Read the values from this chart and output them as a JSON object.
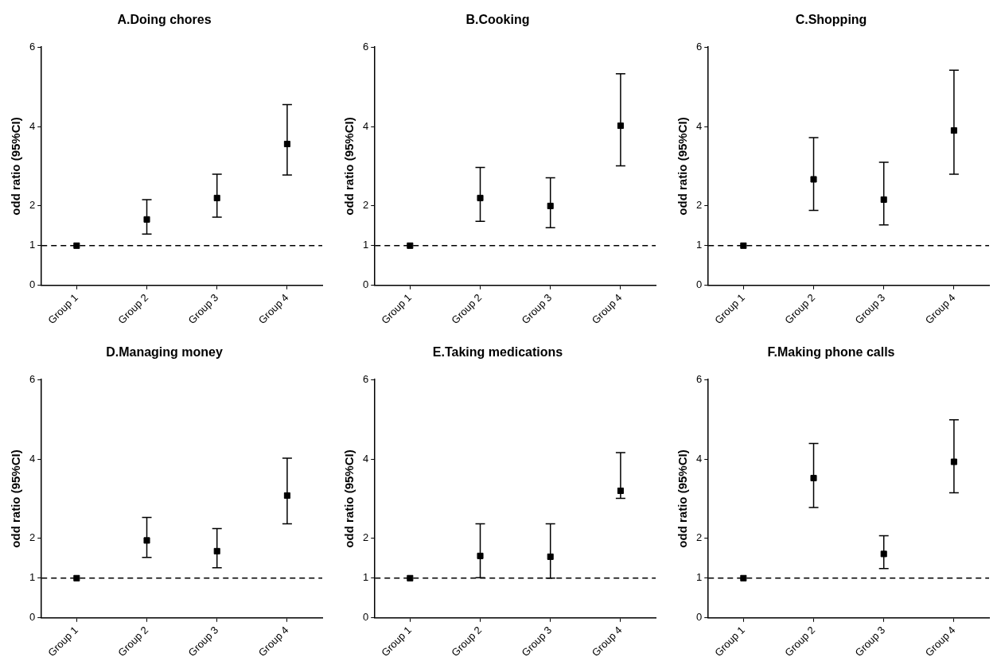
{
  "chart_data": [
    {
      "type": "scatter",
      "title": "A.Doing chores",
      "ylabel": "odd ratio (95%CI)",
      "categories": [
        "Group 1",
        "Group 2",
        "Group 3",
        "Group 4"
      ],
      "marker": "square",
      "grid": false,
      "legend": false,
      "ylim": [
        0,
        6
      ],
      "yticks": [
        0,
        1,
        2,
        4,
        6
      ],
      "series": [
        {
          "color": "#000000",
          "values": [
            1,
            1.66,
            2.2,
            3.56
          ],
          "errors": [
            null,
            [
              1.29,
              2.16
            ],
            [
              1.72,
              2.8
            ],
            [
              2.78,
              4.55
            ]
          ]
        }
      ],
      "ref_lines": [
        {
          "axis": "y",
          "value": 1,
          "line_style": "dashed",
          "color": "#000000"
        }
      ]
    },
    {
      "type": "scatter",
      "title": "B.Cooking",
      "ylabel": "odd ratio (95%CI)",
      "categories": [
        "Group 1",
        "Group 2",
        "Group 3",
        "Group 4"
      ],
      "marker": "square",
      "grid": false,
      "legend": false,
      "ylim": [
        0,
        6
      ],
      "yticks": [
        0,
        1,
        2,
        4,
        6
      ],
      "series": [
        {
          "color": "#000000",
          "values": [
            1,
            2.2,
            2.0,
            4.02
          ],
          "errors": [
            null,
            [
              1.61,
              2.97
            ],
            [
              1.45,
              2.71
            ],
            [
              3.01,
              5.33
            ]
          ]
        }
      ],
      "ref_lines": [
        {
          "axis": "y",
          "value": 1,
          "line_style": "dashed",
          "color": "#000000"
        }
      ]
    },
    {
      "type": "scatter",
      "title": "C.Shopping",
      "ylabel": "odd ratio (95%CI)",
      "categories": [
        "Group 1",
        "Group 2",
        "Group 3",
        "Group 4"
      ],
      "marker": "square",
      "grid": false,
      "legend": false,
      "ylim": [
        0,
        6
      ],
      "yticks": [
        0,
        1,
        2,
        4,
        6
      ],
      "series": [
        {
          "color": "#000000",
          "values": [
            1,
            2.67,
            2.16,
            3.9
          ],
          "errors": [
            null,
            [
              1.89,
              3.72
            ],
            [
              1.52,
              3.1
            ],
            [
              2.8,
              5.42
            ]
          ]
        }
      ],
      "ref_lines": [
        {
          "axis": "y",
          "value": 1,
          "line_style": "dashed",
          "color": "#000000"
        }
      ]
    },
    {
      "type": "scatter",
      "title": "D.Managing money",
      "ylabel": "odd ratio (95%CI)",
      "categories": [
        "Group 1",
        "Group 2",
        "Group 3",
        "Group 4"
      ],
      "marker": "square",
      "grid": false,
      "legend": false,
      "ylim": [
        0,
        6
      ],
      "yticks": [
        0,
        1,
        2,
        4,
        6
      ],
      "series": [
        {
          "color": "#000000",
          "values": [
            1,
            1.95,
            1.68,
            3.08
          ],
          "errors": [
            null,
            [
              1.52,
              2.53
            ],
            [
              1.26,
              2.25
            ],
            [
              2.37,
              4.02
            ]
          ]
        }
      ],
      "ref_lines": [
        {
          "axis": "y",
          "value": 1,
          "line_style": "dashed",
          "color": "#000000"
        }
      ]
    },
    {
      "type": "scatter",
      "title": "E.Taking medications",
      "ylabel": "odd ratio (95%CI)",
      "categories": [
        "Group 1",
        "Group 2",
        "Group 3",
        "Group 4"
      ],
      "marker": "square",
      "grid": false,
      "legend": false,
      "ylim": [
        0,
        6
      ],
      "yticks": [
        0,
        1,
        2,
        4,
        6
      ],
      "series": [
        {
          "color": "#000000",
          "values": [
            1,
            1.56,
            1.54,
            3.2
          ],
          "errors": [
            null,
            [
              1.01,
              2.37
            ],
            [
              1.0,
              2.37
            ],
            [
              3.01,
              4.16
            ]
          ]
        }
      ],
      "ref_lines": [
        {
          "axis": "y",
          "value": 1,
          "line_style": "dashed",
          "color": "#000000"
        }
      ]
    },
    {
      "type": "scatter",
      "title": "F.Making phone calls",
      "ylabel": "odd ratio (95%CI)",
      "categories": [
        "Group 1",
        "Group 2",
        "Group 3",
        "Group 4"
      ],
      "marker": "square",
      "grid": false,
      "legend": false,
      "ylim": [
        0,
        6
      ],
      "yticks": [
        0,
        1,
        2,
        4,
        6
      ],
      "series": [
        {
          "color": "#000000",
          "values": [
            1,
            3.52,
            1.61,
            3.93
          ],
          "errors": [
            null,
            [
              2.78,
              4.39
            ],
            [
              1.24,
              2.07
            ],
            [
              3.15,
              4.99
            ]
          ]
        }
      ],
      "ref_lines": [
        {
          "axis": "y",
          "value": 1,
          "line_style": "dashed",
          "color": "#000000"
        }
      ]
    }
  ]
}
